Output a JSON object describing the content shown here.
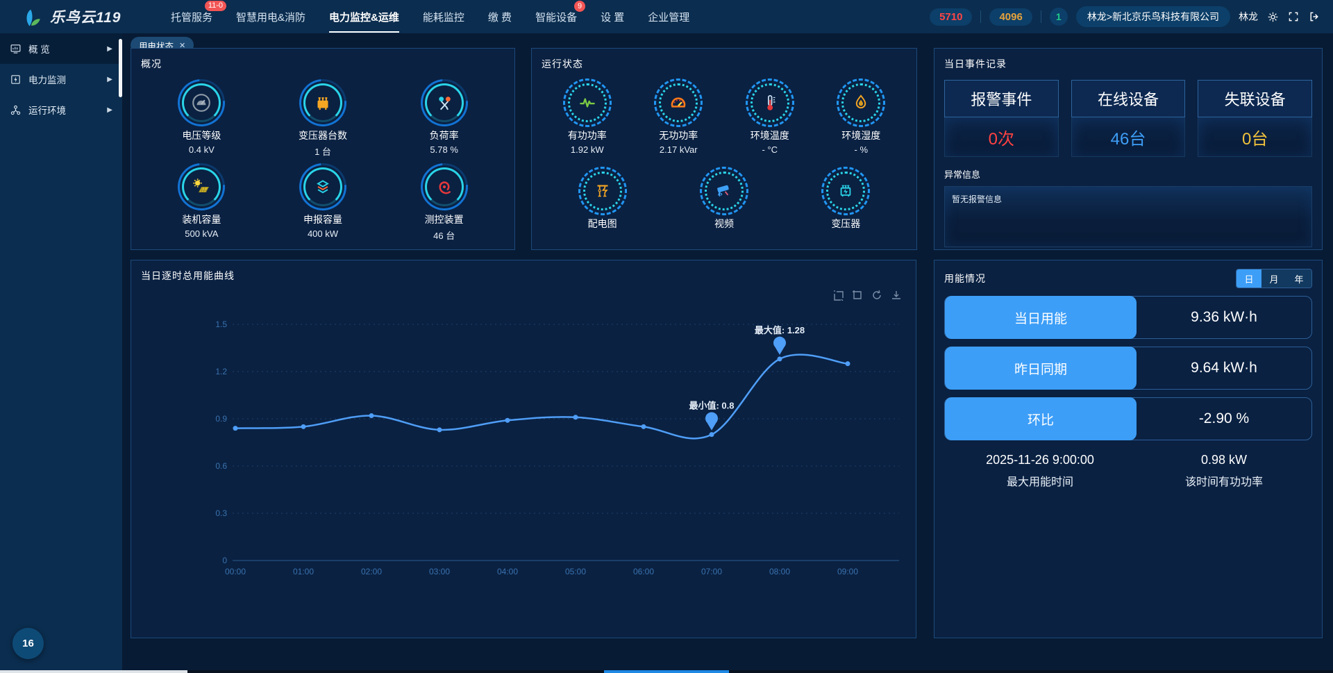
{
  "topbar": {
    "logo_text": "乐鸟云119",
    "nav": [
      {
        "label": "托管服务",
        "badge": "11-0"
      },
      {
        "label": "智慧用电&消防"
      },
      {
        "label": "电力监控&运维",
        "active": true
      },
      {
        "label": "能耗监控"
      },
      {
        "label": "缴 费"
      },
      {
        "label": "智能设备",
        "badge": "9"
      },
      {
        "label": "设 置"
      },
      {
        "label": "企业管理"
      }
    ],
    "stat_red": "5710",
    "stat_orange": "4096",
    "stat_green": "1",
    "company": "林龙>新北京乐鸟科技有限公司",
    "user": "林龙"
  },
  "sidebar": {
    "items": [
      {
        "label": "概 览",
        "active": true
      },
      {
        "label": "电力监测"
      },
      {
        "label": "运行环境"
      }
    ],
    "floating_badge": "16"
  },
  "tabs": {
    "active": "用电状态",
    "close": "✕"
  },
  "overview": {
    "title": "概况",
    "items": [
      {
        "label": "电压等级",
        "value": "0.4 kV"
      },
      {
        "label": "变压器台数",
        "value": "1 台"
      },
      {
        "label": "负荷率",
        "value": "5.78 %"
      },
      {
        "label": "装机容量",
        "value": "500 kVA"
      },
      {
        "label": "申报容量",
        "value": "400 kW"
      },
      {
        "label": "测控装置",
        "value": "46 台"
      }
    ]
  },
  "run_state": {
    "title": "运行状态",
    "row1": [
      {
        "label": "有功功率",
        "value": "1.92 kW"
      },
      {
        "label": "无功功率",
        "value": "2.17 kVar"
      },
      {
        "label": "环境温度",
        "value": "- °C"
      },
      {
        "label": "环境湿度",
        "value": "- %"
      }
    ],
    "row2": [
      {
        "label": "配电图"
      },
      {
        "label": "视频"
      },
      {
        "label": "变压器"
      }
    ]
  },
  "events": {
    "title": "当日事件记录",
    "cards": [
      {
        "label": "报警事件",
        "value": "0次",
        "color": "#ff4242"
      },
      {
        "label": "在线设备",
        "value": "46台",
        "color": "#3d9ef7"
      },
      {
        "label": "失联设备",
        "value": "0台",
        "color": "#f0c23c"
      }
    ],
    "abnormal_label": "异常信息",
    "abnormal_empty": "暂无报警信息"
  },
  "chart_panel": {
    "title": "当日逐时总用能曲线"
  },
  "chart_data": {
    "type": "line",
    "title": "当日逐时总用能曲线",
    "x": [
      "00:00",
      "01:00",
      "02:00",
      "03:00",
      "04:00",
      "05:00",
      "06:00",
      "07:00",
      "08:00",
      "09:00"
    ],
    "values": [
      0.84,
      0.85,
      0.92,
      0.83,
      0.89,
      0.91,
      0.85,
      0.8,
      1.28,
      1.25
    ],
    "ylim": [
      0,
      1.5
    ],
    "yticks": [
      0,
      0.3,
      0.6,
      0.9,
      1.2,
      1.5
    ],
    "min_label": "最小值: 0.8",
    "max_label": "最大值: 1.28",
    "min_index": 7,
    "max_index": 8,
    "line_color": "#4f9ef7",
    "grid": true,
    "smooth": true,
    "legend": "none"
  },
  "energy": {
    "title": "用能情况",
    "tabs": [
      "日",
      "月",
      "年"
    ],
    "active_tab": "日",
    "rows": [
      {
        "label": "当日用能",
        "value": "9.36 kW·h"
      },
      {
        "label": "昨日同期",
        "value": "9.64 kW·h"
      },
      {
        "label": "环比",
        "value": "-2.90 %"
      }
    ],
    "footer": [
      {
        "value": "2025-11-26 9:00:00",
        "label": "最大用能时间"
      },
      {
        "value": "0.98 kW",
        "label": "该时间有功功率"
      }
    ]
  },
  "colors": {
    "accent": "#3d9ef7",
    "panel_border": "#1c4a7a",
    "line": "#4f9ef7"
  }
}
